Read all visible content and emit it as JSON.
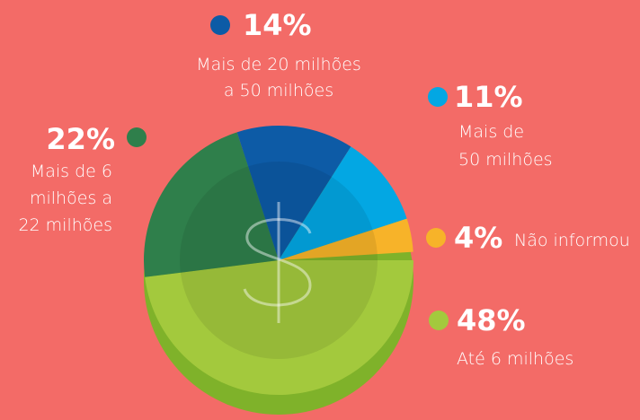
{
  "chart_data": {
    "type": "pie",
    "categories": [
      "Até 6 milhões",
      "Mais de 6\nmilhões a\n22 milhões",
      "Mais de 20 milhões\na 50 milhões",
      "Mais de\n50 milhões",
      "Não informou"
    ],
    "values": [
      48,
      22,
      14,
      11,
      4
    ],
    "value_labels": [
      "48%",
      "22%",
      "14%",
      "11%",
      "4%"
    ],
    "colors": [
      "#a3c93d",
      "#2f7f4b",
      "#0d5ba6",
      "#03a7e3",
      "#f7b329"
    ]
  }
}
